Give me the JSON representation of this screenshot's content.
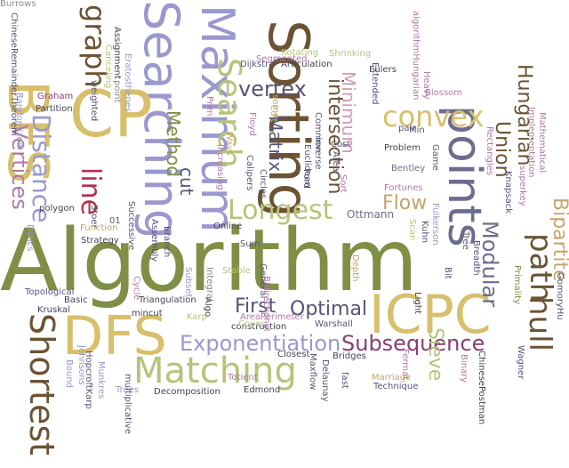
{
  "palette": {
    "olive": "#7f8f45",
    "gold": "#d8bf6b",
    "lavender": "#9a98cf",
    "navy": "#555577",
    "crimson": "#b0324d",
    "brown": "#6b5333",
    "sage": "#b6c47a",
    "mauve": "#b07aa6",
    "plum": "#8a3d73",
    "slate": "#6c6c8e",
    "tan": "#c9a46a",
    "grey": "#8c8c8c",
    "pink": "#d29ab9",
    "dark": "#444455"
  },
  "words": [
    {
      "text": "Algorithm",
      "color": "olive"
    },
    {
      "text": "Sorting",
      "color": "brown"
    },
    {
      "text": "Searching",
      "color": "lavender"
    },
    {
      "text": "Maximum",
      "color": "lavender"
    },
    {
      "text": "points",
      "color": "slate"
    },
    {
      "text": "BFS",
      "color": "gold"
    },
    {
      "text": "CP",
      "color": "gold"
    },
    {
      "text": "DFS",
      "color": "gold"
    },
    {
      "text": "ICPC",
      "color": "gold"
    },
    {
      "text": "Matching",
      "color": "sage"
    },
    {
      "text": "Shortest",
      "color": "brown"
    },
    {
      "text": "path",
      "color": "brown"
    },
    {
      "text": "hull",
      "color": "brown"
    },
    {
      "text": "convex",
      "color": "gold"
    },
    {
      "text": "Search",
      "color": "sage"
    },
    {
      "text": "Longest",
      "color": "sage"
    },
    {
      "text": "graph",
      "color": "brown"
    },
    {
      "text": "line",
      "color": "crimson"
    },
    {
      "text": "Distance",
      "color": "lavender"
    },
    {
      "text": "Vertices",
      "color": "mauve"
    },
    {
      "text": "vertex",
      "color": "navy"
    },
    {
      "text": "intersection",
      "color": "brown"
    },
    {
      "text": "Minimum",
      "color": "pink"
    },
    {
      "text": "Hungarian",
      "color": "brown"
    },
    {
      "text": "Union",
      "color": "brown"
    },
    {
      "text": "Modular",
      "color": "slate"
    },
    {
      "text": "Bipartite",
      "color": "tan"
    },
    {
      "text": "Exponentiation",
      "color": "lavender"
    },
    {
      "text": "Subsequence",
      "color": "plum"
    },
    {
      "text": "Optimal",
      "color": "navy"
    },
    {
      "text": "First",
      "color": "navy"
    },
    {
      "text": "Flow",
      "color": "tan"
    },
    {
      "text": "Sieve",
      "color": "sage"
    },
    {
      "text": "Method",
      "color": "olive"
    },
    {
      "text": "cut",
      "color": "navy"
    },
    {
      "text": "Matrix",
      "color": "navy"
    },
    {
      "text": "Ottmann",
      "color": "slate"
    },
    {
      "text": "Bentley",
      "color": "slate"
    },
    {
      "text": "Fortunes",
      "color": "mauve"
    },
    {
      "text": "Dijkstra",
      "color": "navy"
    },
    {
      "text": "Articulation",
      "color": "dark"
    },
    {
      "text": "Eulers",
      "color": "dark"
    },
    {
      "text": "Problem",
      "color": "dark"
    },
    {
      "text": "Closest",
      "color": "dark"
    },
    {
      "text": "Bridges",
      "color": "dark"
    },
    {
      "text": "Decomposition",
      "color": "dark"
    },
    {
      "text": "polygon",
      "color": "dark"
    },
    {
      "text": "Kruskal",
      "color": "dark"
    },
    {
      "text": "Triangulation",
      "color": "dark"
    },
    {
      "text": "construction",
      "color": "dark"
    },
    {
      "text": "mincut",
      "color": "dark"
    },
    {
      "text": "Edmond",
      "color": "dark"
    },
    {
      "text": "Basic",
      "color": "dark"
    },
    {
      "text": "Online",
      "color": "dark"
    },
    {
      "text": "Strategy",
      "color": "dark"
    },
    {
      "text": "Partition",
      "color": "dark"
    },
    {
      "text": "Graham",
      "color": "plum"
    },
    {
      "text": "weighted",
      "color": "navy"
    },
    {
      "text": "Ford",
      "color": "navy"
    },
    {
      "text": "Common",
      "color": "navy"
    },
    {
      "text": "Euclidean",
      "color": "navy"
    },
    {
      "text": "Floyd",
      "color": "mauve"
    },
    {
      "text": "Calipers",
      "color": "navy"
    },
    {
      "text": "Rotating",
      "color": "sage"
    },
    {
      "text": "Shrinking",
      "color": "sage"
    },
    {
      "text": "Segmented",
      "color": "mauve"
    },
    {
      "text": "ChineseRemainderTheorem",
      "color": "navy"
    },
    {
      "text": "Randomized",
      "color": "lavender"
    },
    {
      "text": "Assignment",
      "color": "dark"
    },
    {
      "text": "Canceling",
      "color": "sage"
    },
    {
      "text": "Eratosthenes",
      "color": "lavender"
    },
    {
      "text": "point",
      "color": "grey"
    },
    {
      "text": "Prim",
      "color": "mauve"
    },
    {
      "text": "Increasing",
      "color": "mauve"
    },
    {
      "text": "Ways",
      "color": "tan"
    },
    {
      "text": "Edit",
      "color": "sage"
    },
    {
      "text": "Extended",
      "color": "navy"
    },
    {
      "text": "algorithmHungarian",
      "color": "mauve"
    },
    {
      "text": "Heavy",
      "color": "mauve"
    },
    {
      "text": "Blossom",
      "color": "mauve"
    },
    {
      "text": "pair",
      "color": "navy"
    },
    {
      "text": "Min",
      "color": "navy"
    },
    {
      "text": "Game",
      "color": "navy"
    },
    {
      "text": "Rectangles",
      "color": "mauve"
    },
    {
      "text": "Implementation",
      "color": "mauve"
    },
    {
      "text": "Mathematical",
      "color": "mauve"
    },
    {
      "text": "superkey",
      "color": "mauve"
    },
    {
      "text": "Knapsack",
      "color": "navy"
    },
    {
      "text": "Fulkerson",
      "color": "lavender"
    },
    {
      "text": "Kuhn",
      "color": "navy"
    },
    {
      "text": "Tree",
      "color": "navy"
    },
    {
      "text": "Breadth",
      "color": "navy"
    },
    {
      "text": "Scan",
      "color": "sage"
    },
    {
      "text": "Light",
      "color": "dark"
    },
    {
      "text": "Bit",
      "color": "navy"
    },
    {
      "text": "Primality",
      "color": "olive"
    },
    {
      "text": "GomoryHu",
      "color": "navy"
    },
    {
      "text": "Wagner",
      "color": "navy"
    },
    {
      "text": "ChinesePostman",
      "color": "dark"
    },
    {
      "text": "Binary",
      "color": "mauve"
    },
    {
      "text": "Fermat",
      "color": "mauve"
    },
    {
      "text": "Technique",
      "color": "navy"
    },
    {
      "text": "Marriage",
      "color": "tan"
    },
    {
      "text": "Delaunay",
      "color": "navy"
    },
    {
      "text": "Maxflow",
      "color": "navy"
    },
    {
      "text": "Warshall",
      "color": "navy"
    },
    {
      "text": "Depth",
      "color": "tan"
    },
    {
      "text": "Cost",
      "color": "navy"
    },
    {
      "text": "Sort",
      "color": "mauve"
    },
    {
      "text": "Area",
      "color": "navy"
    },
    {
      "text": "inverse",
      "color": "navy"
    },
    {
      "text": "Circles",
      "color": "navy"
    },
    {
      "text": "General",
      "color": "navy"
    },
    {
      "text": "Sum",
      "color": "navy"
    },
    {
      "text": "Stable",
      "color": "sage"
    },
    {
      "text": "AreaPerimeter",
      "color": "mauve"
    },
    {
      "text": "Cover",
      "color": "sage"
    },
    {
      "text": "Karp",
      "color": "sage"
    },
    {
      "text": "Algo",
      "color": "dark"
    },
    {
      "text": "Subset",
      "color": "lavender"
    },
    {
      "text": "Totient",
      "color": "mauve"
    },
    {
      "text": "Cycle",
      "color": "mauve"
    },
    {
      "text": "Branch",
      "color": "navy"
    },
    {
      "text": "Assembly",
      "color": "navy"
    },
    {
      "text": "Successive",
      "color": "navy"
    },
    {
      "text": "Stoer",
      "color": "navy"
    },
    {
      "text": "Function",
      "color": "tan"
    },
    {
      "text": "Dinics",
      "color": "lavender"
    },
    {
      "text": "Topological",
      "color": "navy"
    },
    {
      "text": "Bound",
      "color": "lavender"
    },
    {
      "text": "HopcroftKarp",
      "color": "navy"
    },
    {
      "text": "Johnsons",
      "color": "lavender"
    },
    {
      "text": "Munkres",
      "color": "lavender"
    },
    {
      "text": "Trees",
      "color": "lavender"
    },
    {
      "text": "multiplicative",
      "color": "navy"
    },
    {
      "text": "fast",
      "color": "navy"
    },
    {
      "text": "01",
      "color": "navy"
    },
    {
      "text": "some",
      "color": "tan"
    },
    {
      "text": "Bidirectional",
      "color": "mauve"
    },
    {
      "text": "Integral",
      "color": "grey"
    },
    {
      "text": "Burrows",
      "color": "grey"
    }
  ]
}
